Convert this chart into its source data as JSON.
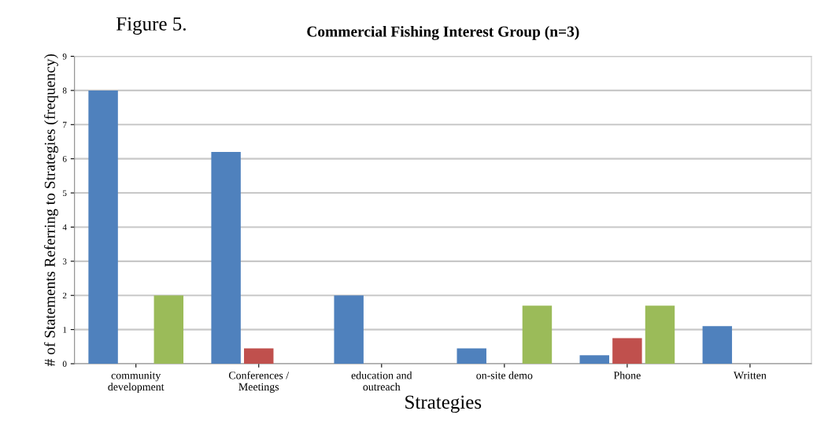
{
  "chart_data": {
    "type": "bar",
    "title": "Commercial Fishing Interest Group (n=3)",
    "annotations": [
      "Figure 5."
    ],
    "xlabel": "Strategies",
    "ylabel": "# of Statements Referring to Strategies (frequency)",
    "categories": [
      "community\ndevelopment",
      "Conferences /\nMeetings",
      "education and\noutreach",
      "on-site demo",
      "Phone",
      "Written"
    ],
    "series": [
      {
        "color": "#4f81bd",
        "values": [
          8.0,
          6.2,
          2.0,
          0.45,
          0.25,
          1.1
        ]
      },
      {
        "color": "#c0504d",
        "values": [
          null,
          0.45,
          null,
          null,
          0.75,
          null
        ]
      },
      {
        "color": "#9bbb59",
        "values": [
          2.0,
          null,
          null,
          1.7,
          1.7,
          null
        ]
      }
    ],
    "ylim": [
      0,
      9
    ],
    "yticks": [
      0,
      1,
      2,
      3,
      4,
      5,
      6,
      7,
      8,
      9
    ],
    "grid": "y",
    "legend": false
  }
}
